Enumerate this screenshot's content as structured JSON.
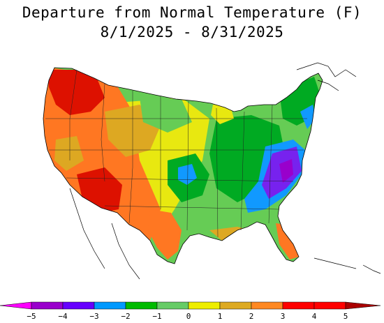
{
  "title": {
    "line1": "Departure from Normal Temperature (F)",
    "line2": "8/1/2025 - 8/31/2025"
  },
  "legend": {
    "ticks": [
      "−5",
      "−4",
      "−3",
      "−2",
      "−1",
      "0",
      "1",
      "2",
      "3",
      "4",
      "5"
    ],
    "colors": [
      "#ff00ff",
      "#9900cc",
      "#6600ff",
      "#0099ff",
      "#00bb00",
      "#66cc66",
      "#eeee00",
      "#ddaa22",
      "#ff8822",
      "#ff0000",
      "#aa0000"
    ]
  },
  "map_colors": {
    "very_warm": "#dd1100",
    "warm": "#ff7722",
    "mild_warm": "#dda822",
    "slight_warm": "#e8e810",
    "neutral": "#66cc55",
    "cool": "#00aa22",
    "cooler": "#1199ff",
    "cold": "#7722ee",
    "coldest": "#9900cc"
  }
}
